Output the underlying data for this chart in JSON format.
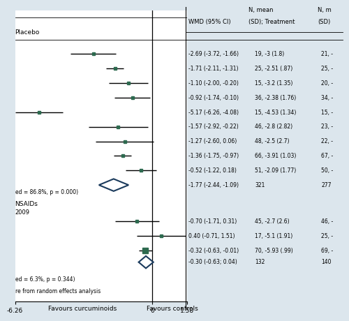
{
  "xmin": -6.26,
  "xmax": 1.58,
  "background_color": "#dce6ed",
  "plot_bg": "#ffffff",
  "group1_label": "Placebo",
  "group2_label": "NSAIDs",
  "group2_sublabel": "2009",
  "footnote": "re from random effects analysis",
  "x_left_label": "Favours curcuminoids",
  "x_right_label": "Favours controls",
  "x_tick_left": -6.26,
  "x_tick_zero": 0,
  "x_tick_right": 1.58,
  "col_header1": "N, mean",
  "col_header2": "N, m",
  "col_sub1": "WMD (95% CI)",
  "col_sub2": "(SD); Treatment",
  "col_sub3": "(SD)",
  "group1_stat": "ed = 86.8%, p = 0.000)",
  "group2_stat": "ed = 6.3%, p = 0.344)",
  "square_color": "#2d6a4f",
  "diamond_color": "#1a3a5c",
  "line_color": "#000000",
  "studies": [
    {
      "wmd": -2.69,
      "ci_lo": -3.72,
      "ci_hi": -1.66,
      "ms": 3.5,
      "is_summary": false,
      "group": 1,
      "ci_label": "-2.69 (-3.72, -1.66)",
      "treat_label": "19, -3 (1.8)",
      "ctrl_label": "21, -"
    },
    {
      "wmd": -1.71,
      "ci_lo": -2.11,
      "ci_hi": -1.31,
      "ms": 3.0,
      "is_summary": false,
      "group": 1,
      "ci_label": "-1.71 (-2.11, -1.31)",
      "treat_label": "25, -2.51 (.87)",
      "ctrl_label": "25, -"
    },
    {
      "wmd": -1.1,
      "ci_lo": -2.0,
      "ci_hi": -0.2,
      "ms": 3.0,
      "is_summary": false,
      "group": 1,
      "ci_label": "-1.10 (-2.00, -0.20)",
      "treat_label": "15, -3.2 (1.35)",
      "ctrl_label": "20, -"
    },
    {
      "wmd": -0.92,
      "ci_lo": -1.74,
      "ci_hi": -0.1,
      "ms": 3.0,
      "is_summary": false,
      "group": 1,
      "ci_label": "-0.92 (-1.74, -0.10)",
      "treat_label": "36, -2.38 (1.76)",
      "ctrl_label": "34, -"
    },
    {
      "wmd": -5.17,
      "ci_lo": -6.26,
      "ci_hi": -4.08,
      "ms": 3.0,
      "is_summary": false,
      "group": 1,
      "ci_label": "-5.17 (-6.26, -4.08)",
      "treat_label": "15, -4.53 (1.34)",
      "ctrl_label": "15, -"
    },
    {
      "wmd": -1.57,
      "ci_lo": -2.92,
      "ci_hi": -0.22,
      "ms": 3.0,
      "is_summary": false,
      "group": 1,
      "ci_label": "-1.57 (-2.92, -0.22)",
      "treat_label": "46, -2.8 (2.82)",
      "ctrl_label": "23, -"
    },
    {
      "wmd": -1.27,
      "ci_lo": -2.6,
      "ci_hi": 0.06,
      "ms": 3.0,
      "is_summary": false,
      "group": 1,
      "ci_label": "-1.27 (-2.60, 0.06)",
      "treat_label": "48, -2.5 (2.7)",
      "ctrl_label": "22, -"
    },
    {
      "wmd": -1.36,
      "ci_lo": -1.75,
      "ci_hi": -0.97,
      "ms": 3.0,
      "is_summary": false,
      "group": 1,
      "ci_label": "-1.36 (-1.75, -0.97)",
      "treat_label": "66, -3.91 (1.03)",
      "ctrl_label": "67, -"
    },
    {
      "wmd": -0.52,
      "ci_lo": -1.22,
      "ci_hi": 0.18,
      "ms": 3.0,
      "is_summary": false,
      "group": 1,
      "ci_label": "-0.52 (-1.22, 0.18)",
      "treat_label": "51, -2.09 (1.77)",
      "ctrl_label": "50, -"
    },
    {
      "wmd": -1.77,
      "ci_lo": -2.44,
      "ci_hi": -1.09,
      "ms": 0,
      "is_summary": true,
      "group": 1,
      "ci_label": "-1.77 (-2.44, -1.09)",
      "treat_label": "321",
      "ctrl_label": "277"
    },
    {
      "wmd": -0.7,
      "ci_lo": -1.71,
      "ci_hi": 0.31,
      "ms": 3.0,
      "is_summary": false,
      "group": 2,
      "ci_label": "-0.70 (-1.71, 0.31)",
      "treat_label": "45, -2.7 (2.6)",
      "ctrl_label": "46, -"
    },
    {
      "wmd": 0.4,
      "ci_lo": -0.71,
      "ci_hi": 1.51,
      "ms": 3.0,
      "is_summary": false,
      "group": 2,
      "ci_label": "0.40 (-0.71, 1.51)",
      "treat_label": "17, -5.1 (1.91)",
      "ctrl_label": "25, -"
    },
    {
      "wmd": -0.32,
      "ci_lo": -0.63,
      "ci_hi": -0.01,
      "ms": 5.5,
      "is_summary": false,
      "group": 2,
      "large": true,
      "ci_label": "-0.32 (-0.63, -0.01)",
      "treat_label": "70, -5.93 (.99)",
      "ctrl_label": "69, -"
    },
    {
      "wmd": -0.3,
      "ci_lo": -0.63,
      "ci_hi": 0.04,
      "ms": 0,
      "is_summary": true,
      "group": 2,
      "ci_label": "-0.30 (-0.63; 0.04)",
      "treat_label": "132",
      "ctrl_label": "140"
    }
  ]
}
